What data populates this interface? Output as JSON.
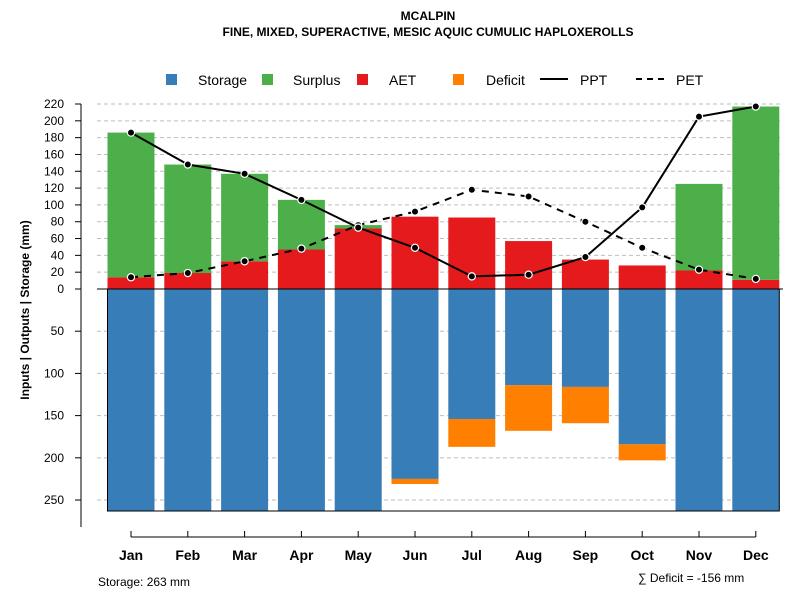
{
  "chart_data": {
    "type": "bar",
    "title": "MCALPIN",
    "subtitle": "FINE, MIXED, SUPERACTIVE, MESIC AQUIC CUMULIC HAPLOXEROLLS",
    "ylabel": "Inputs | Outputs | Storage     (mm)",
    "categories": [
      "Jan",
      "Feb",
      "Mar",
      "Apr",
      "May",
      "Jun",
      "Jul",
      "Aug",
      "Sep",
      "Oct",
      "Nov",
      "Dec"
    ],
    "upper_ylim": [
      0,
      220
    ],
    "upper_ticks": [
      "0",
      "20",
      "40",
      "60",
      "80",
      "100",
      "120",
      "140",
      "160",
      "180",
      "200",
      "220"
    ],
    "lower_ylim": [
      0,
      263
    ],
    "lower_ticks": [
      "50",
      "100",
      "150",
      "200",
      "250"
    ],
    "legend": {
      "storage": "Storage",
      "surplus": "Surplus",
      "aet": "AET",
      "deficit": "Deficit",
      "ppt": "PPT",
      "pet": "PET"
    },
    "colors": {
      "storage": "#377eb8",
      "surplus": "#4daf4a",
      "aet": "#e41a1c",
      "deficit": "#ff7f00",
      "line": "#000000",
      "grid": "#bebebe"
    },
    "series": [
      {
        "name": "AET",
        "values": [
          14,
          19,
          33,
          47,
          72,
          86,
          85,
          57,
          35,
          28,
          22,
          11
        ]
      },
      {
        "name": "Surplus",
        "values": [
          172,
          129,
          104,
          59,
          4,
          0,
          0,
          0,
          0,
          0,
          103,
          206
        ]
      },
      {
        "name": "Storage",
        "values": [
          263,
          263,
          263,
          263,
          263,
          225,
          154,
          114,
          116,
          184,
          263,
          263
        ]
      },
      {
        "name": "Deficit",
        "values": [
          0,
          0,
          0,
          0,
          0,
          6,
          33,
          54,
          43,
          19,
          0,
          0
        ]
      },
      {
        "name": "PPT",
        "values": [
          186,
          148,
          137,
          106,
          73,
          49,
          15,
          17,
          38,
          97,
          205,
          217
        ]
      },
      {
        "name": "PET",
        "values": [
          14,
          19,
          33,
          48,
          76,
          92,
          118,
          110,
          80,
          49,
          23,
          12
        ]
      }
    ]
  },
  "footer": {
    "storage_label": "Storage: 263 mm",
    "deficit_label": "∑ Deficit = -156 mm"
  }
}
